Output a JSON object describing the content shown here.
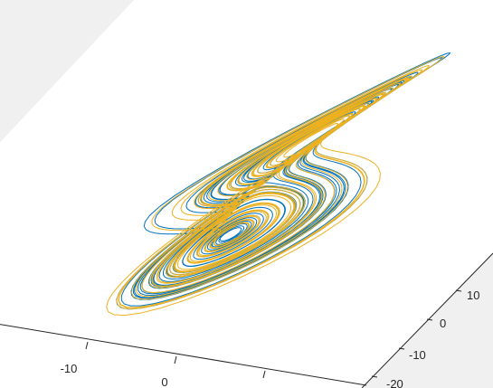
{
  "chart_data": {
    "type": "line",
    "title": "",
    "xlabel": "",
    "ylabel": "",
    "zlabel": "",
    "view": "3-D perspective",
    "grid": false,
    "legend": "none",
    "x_ticks": [
      "-10",
      "0"
    ],
    "y_ticks": [
      "10",
      "0",
      "-10",
      "-20"
    ],
    "series": [
      {
        "color": "#0072BD"
      },
      {
        "color": "#EDB120"
      }
    ]
  },
  "colors": {
    "figure_background": "#f0f0f0",
    "axes_background": "#ffffff",
    "axis_line": "#262626"
  }
}
